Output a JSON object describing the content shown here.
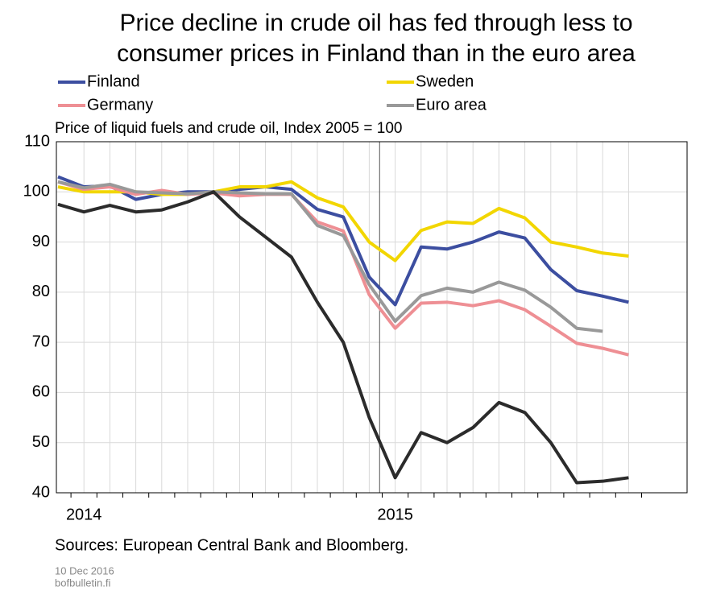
{
  "chart_data": {
    "type": "line",
    "title": [
      "Price decline in crude oil has fed through less to",
      "consumer prices in Finland than in the euro area"
    ],
    "subtitle": "Price of liquid fuels and crude oil, Index 2005 = 100",
    "source": "Sources: European Central Bank and Bloomberg.",
    "date": "10 Dec 2016",
    "site": "bofbulletin.fi",
    "categories": [
      null,
      "2014",
      null,
      null,
      null,
      null,
      null,
      null,
      null,
      null,
      null,
      null,
      null,
      "2015",
      null,
      null,
      null,
      null,
      null,
      null,
      null,
      null,
      null
    ],
    "ylim": [
      40,
      110
    ],
    "yticks": [
      40,
      50,
      60,
      70,
      80,
      90,
      100,
      110
    ],
    "grid": true,
    "series": [
      {
        "name": "Finland",
        "color": "#3c4ea0",
        "values": [
          103,
          101,
          101.2,
          98.5,
          99.5,
          100,
          100,
          100.5,
          101,
          100.5,
          96.5,
          95,
          83,
          77.5,
          89,
          88.6,
          90,
          92,
          90.8,
          84.5,
          80.3,
          79.2,
          78
        ]
      },
      {
        "name": "Sweden",
        "color": "#f2d600",
        "values": [
          101,
          100,
          100,
          100,
          99.5,
          99.5,
          100,
          101,
          101,
          102,
          98.8,
          97,
          90,
          86.3,
          92.3,
          94,
          93.7,
          96.7,
          94.8,
          90,
          89,
          87.8,
          87.2
        ]
      },
      {
        "name": "Germany",
        "color": "#ee8f94",
        "values": [
          102,
          100.5,
          101,
          99.5,
          100.3,
          99.5,
          99.8,
          99.2,
          99.5,
          99.5,
          94,
          92.2,
          79.5,
          72.8,
          77.8,
          78,
          77.3,
          78.3,
          76.5,
          73.2,
          69.8,
          68.8,
          67.5
        ]
      },
      {
        "name": "Euro area",
        "color": "#999999",
        "values": [
          102,
          100.8,
          101.5,
          100,
          99.8,
          99.6,
          100,
          99.8,
          99.6,
          99.6,
          93.3,
          91.3,
          81.5,
          74.2,
          79.3,
          80.8,
          80,
          82,
          80.4,
          77,
          72.8,
          72.2,
          null
        ]
      },
      {
        "color": "#2b2b2b",
        "values": [
          97.5,
          96,
          97.3,
          96,
          96.4,
          98,
          100,
          95,
          91,
          87,
          78,
          70,
          55,
          43,
          52,
          50,
          53,
          58,
          56,
          50,
          42,
          42.3,
          43
        ]
      }
    ]
  }
}
